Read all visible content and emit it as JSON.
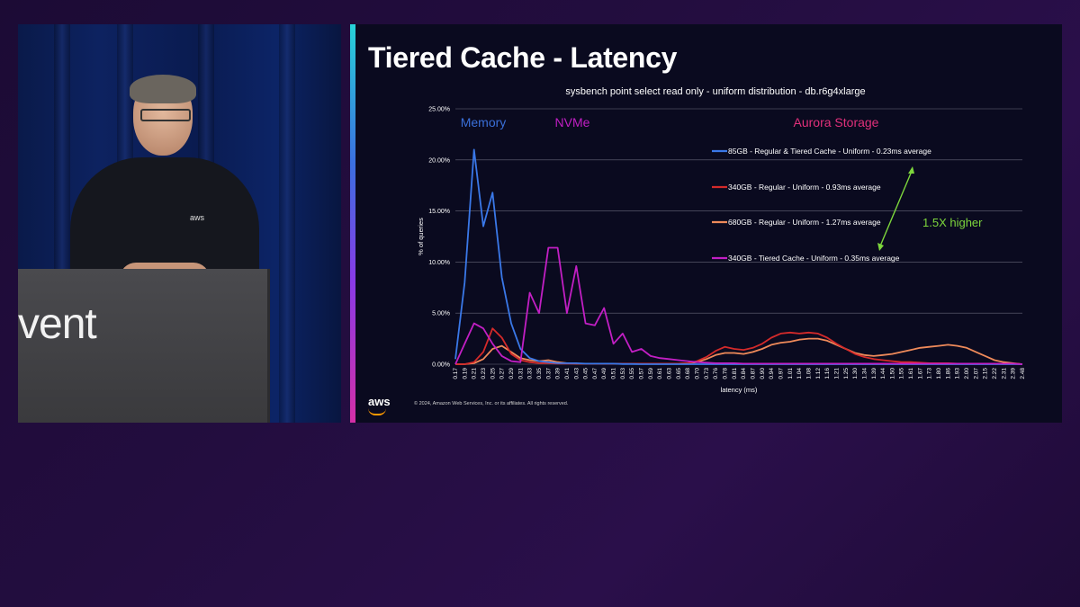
{
  "video": {
    "podium_text": "vent",
    "shirt_logo": "aws"
  },
  "slide": {
    "title": "Tiered Cache - Latency",
    "logo": "aws",
    "copyright": "© 2024, Amazon Web Services, Inc. or its affiliates. All rights reserved."
  },
  "chart_data": {
    "type": "line",
    "title": "sysbench point select read only - uniform distribution - db.r6g4xlarge",
    "xlabel": "latency (ms)",
    "ylabel": "% of queries",
    "ylim": [
      0,
      25
    ],
    "yticks": [
      "0.00%",
      "5.00%",
      "10.00%",
      "15.00%",
      "20.00%",
      "25.00%"
    ],
    "grid": true,
    "legend_placement": "right",
    "categories": [
      "0.17",
      "0.19",
      "0.21",
      "0.23",
      "0.25",
      "0.27",
      "0.29",
      "0.31",
      "0.33",
      "0.35",
      "0.37",
      "0.39",
      "0.41",
      "0.43",
      "0.45",
      "0.47",
      "0.49",
      "0.51",
      "0.53",
      "0.55",
      "0.57",
      "0.59",
      "0.61",
      "0.63",
      "0.65",
      "0.68",
      "0.70",
      "0.73",
      "0.76",
      "0.78",
      "0.81",
      "0.84",
      "0.87",
      "0.90",
      "0.94",
      "0.97",
      "1.01",
      "1.04",
      "1.08",
      "1.12",
      "1.16",
      "1.21",
      "1.25",
      "1.30",
      "1.34",
      "1.39",
      "1.44",
      "1.50",
      "1.55",
      "1.61",
      "1.67",
      "1.73",
      "1.80",
      "1.86",
      "1.93",
      "2.00",
      "2.07",
      "2.15",
      "2.22",
      "2.31",
      "2.39",
      "2.48"
    ],
    "region_labels": [
      {
        "text": "Memory",
        "color": "#3a6fd8"
      },
      {
        "text": "NVMe",
        "color": "#c21fc4"
      },
      {
        "text": "Aurora Storage",
        "color": "#e0307a"
      }
    ],
    "annotation": {
      "text": "1.5X higher",
      "color": "#7dd63c"
    },
    "series": [
      {
        "name": "85GB - Regular & Tiered Cache - Uniform  - 0.23ms average",
        "color": "#3a78e8",
        "values": [
          0.5,
          8,
          21,
          13.5,
          16.8,
          8.5,
          4,
          1.5,
          0.6,
          0.3,
          0.2,
          0.1,
          0.1,
          0.1,
          0.05,
          0.05,
          0.05,
          0.05,
          0.02,
          0.02,
          0,
          0,
          0,
          0,
          0,
          0,
          0,
          0,
          0,
          0,
          0,
          0,
          0,
          0,
          0,
          0,
          0,
          0,
          0,
          0,
          0,
          0,
          0,
          0,
          0,
          0,
          0,
          0,
          0,
          0,
          0,
          0,
          0,
          0,
          0,
          0,
          0,
          0,
          0,
          0,
          0,
          0
        ]
      },
      {
        "name": "340GB - Regular - Uniform - 0.93ms average",
        "color": "#d42a2a",
        "values": [
          0,
          0,
          0.2,
          1.2,
          3.5,
          2.6,
          1,
          0.4,
          0.2,
          0.1,
          0.1,
          0.05,
          0.05,
          0.05,
          0.05,
          0.05,
          0.05,
          0.05,
          0.05,
          0.05,
          0.05,
          0.05,
          0.05,
          0.05,
          0.05,
          0.1,
          0.3,
          0.7,
          1.3,
          1.7,
          1.5,
          1.4,
          1.6,
          2,
          2.6,
          3,
          3.1,
          3,
          3.1,
          3,
          2.6,
          2,
          1.5,
          1,
          0.7,
          0.5,
          0.4,
          0.3,
          0.2,
          0.2,
          0.15,
          0.1,
          0.1,
          0.1,
          0.05,
          0.05,
          0.05,
          0.05,
          0.05,
          0.05,
          0.05,
          0
        ]
      },
      {
        "name": "680GB - Regular - Uniform - 1.27ms average",
        "color": "#ef8a5a",
        "values": [
          0,
          0,
          0.1,
          0.5,
          1.5,
          1.8,
          1.2,
          0.6,
          0.4,
          0.3,
          0.4,
          0.2,
          0.1,
          0.05,
          0.05,
          0.05,
          0.05,
          0.05,
          0.05,
          0.05,
          0.05,
          0.05,
          0.05,
          0.05,
          0.05,
          0.1,
          0.2,
          0.5,
          0.9,
          1.1,
          1.1,
          1,
          1.2,
          1.5,
          1.9,
          2.1,
          2.2,
          2.4,
          2.5,
          2.5,
          2.3,
          1.9,
          1.5,
          1.1,
          0.9,
          0.8,
          0.9,
          1,
          1.2,
          1.4,
          1.6,
          1.7,
          1.8,
          1.9,
          1.8,
          1.6,
          1.2,
          0.8,
          0.4,
          0.2,
          0.1,
          0
        ]
      },
      {
        "name": "340GB - Tiered Cache - Uniform - 0.35ms average",
        "color": "#c21fc4",
        "values": [
          0,
          2,
          4,
          3.5,
          2,
          0.8,
          0.3,
          0.2,
          7,
          5,
          11.4,
          11.4,
          5,
          9.6,
          4,
          3.8,
          5.5,
          2,
          3,
          1.2,
          1.5,
          0.8,
          0.6,
          0.5,
          0.4,
          0.3,
          0.2,
          0.15,
          0.1,
          0.1,
          0.1,
          0.05,
          0.05,
          0.05,
          0.05,
          0.05,
          0.05,
          0.05,
          0.05,
          0.05,
          0.05,
          0.05,
          0.05,
          0.05,
          0.05,
          0.05,
          0.05,
          0.05,
          0.05,
          0.05,
          0.05,
          0.05,
          0.05,
          0.05,
          0.05,
          0.05,
          0.05,
          0.05,
          0.05,
          0.05,
          0.05,
          0
        ]
      }
    ]
  }
}
